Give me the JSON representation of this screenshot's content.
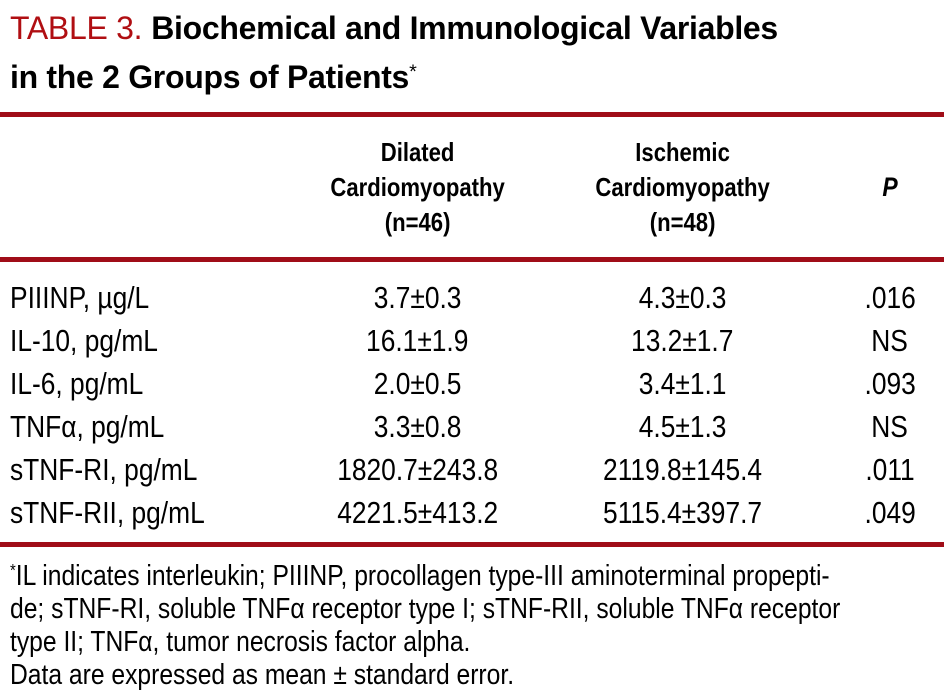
{
  "title": {
    "table_label": "TABLE 3.",
    "line1": "Biochemical and Immunological Variables",
    "line2": "in the 2 Groups of Patients",
    "footnote_marker": "*"
  },
  "header": {
    "group1": {
      "line1": "Dilated",
      "line2": "Cardiomyopathy",
      "line3": "(n=46)"
    },
    "group2": {
      "line1": "Ischemic",
      "line2": "Cardiomyopathy",
      "line3": "(n=48)"
    },
    "p_label": "P"
  },
  "rows": [
    {
      "label": "PIIINP, µg/L",
      "dilated": "3.7±0.3",
      "ischemic": "4.3±0.3",
      "p": ".016"
    },
    {
      "label": "IL-10, pg/mL",
      "dilated": "16.1±1.9",
      "ischemic": "13.2±1.7",
      "p": "NS"
    },
    {
      "label": "IL-6, pg/mL",
      "dilated": "2.0±0.5",
      "ischemic": "3.4±1.1",
      "p": ".093"
    },
    {
      "label": "TNFα, pg/mL",
      "dilated": "3.3±0.8",
      "ischemic": "4.5±1.3",
      "p": "NS"
    },
    {
      "label": "sTNF-RI, pg/mL",
      "dilated": "1820.7±243.8",
      "ischemic": "2119.8±145.4",
      "p": ".011"
    },
    {
      "label": "sTNF-RII, pg/mL",
      "dilated": "4221.5±413.2",
      "ischemic": "5115.4±397.7",
      "p": ".049"
    }
  ],
  "footnote": {
    "marker": "*",
    "line1": "IL indicates interleukin; PIIINP, procollagen type-III aminoterminal propepti-",
    "line2": "de; sTNF-RI, soluble TNFα receptor type I; sTNF-RII, soluble TNFα receptor",
    "line3": "type II; TNFα, tumor necrosis factor alpha.",
    "note": "Data are expressed as mean ± standard error."
  },
  "colors": {
    "accent_red": "#b00e12",
    "rule_red": "#a00d18"
  }
}
